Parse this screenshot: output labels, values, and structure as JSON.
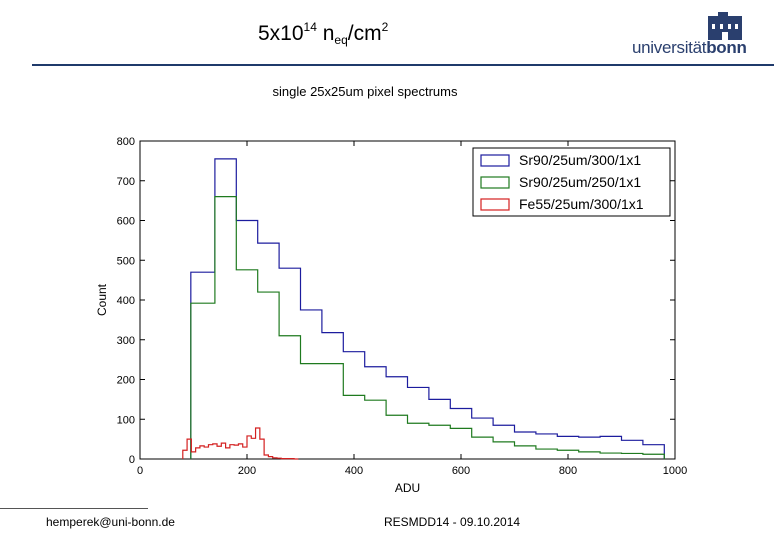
{
  "slide": {
    "title_main": "5x10",
    "title_exp": "14",
    "title_n": " n",
    "title_sub": "eq",
    "title_unit": "/cm",
    "title_unit_exp": "2",
    "subtitle": "single 25x25um pixel spectrums",
    "footer_left": "hemperek@uni-bonn.de",
    "footer_right": "RESMDD14 - 09.10.2014",
    "logo_text_a": "universität",
    "logo_text_b": "bonn"
  },
  "colors": {
    "accent": "#1f3a6b",
    "sr90_300": "#1c1c9e",
    "sr90_250": "#1f7a1f",
    "fe55": "#d42020"
  },
  "chart_data": {
    "type": "histogram",
    "title": "single 25x25um pixel spectrums",
    "xlabel": "ADU",
    "ylabel": "Count",
    "xlim": [
      0,
      1000
    ],
    "ylim": [
      0,
      800
    ],
    "xticks": [
      "0",
      "200",
      "400",
      "600",
      "800",
      "1000"
    ],
    "yticks": [
      "0",
      "100",
      "200",
      "300",
      "400",
      "500",
      "600",
      "700",
      "800"
    ],
    "legend_position": "top-right",
    "series": [
      {
        "name": "Sr90/25um/300/1x1",
        "color": "#1c1c9e",
        "bin_edges": [
          95,
          140,
          180,
          220,
          260,
          300,
          340,
          380,
          420,
          460,
          500,
          540,
          580,
          620,
          660,
          700,
          740,
          780,
          820,
          860,
          900,
          940,
          980
        ],
        "counts": [
          470,
          755,
          600,
          543,
          480,
          375,
          318,
          270,
          232,
          207,
          180,
          150,
          127,
          103,
          85,
          68,
          63,
          57,
          55,
          57,
          47,
          36
        ]
      },
      {
        "name": "Sr90/25um/250/1x1",
        "color": "#1f7a1f",
        "bin_edges": [
          95,
          140,
          180,
          220,
          260,
          300,
          340,
          380,
          420,
          460,
          500,
          540,
          580,
          620,
          660,
          700,
          740,
          780,
          820,
          860,
          900,
          940,
          980
        ],
        "counts": [
          392,
          660,
          476,
          420,
          310,
          240,
          240,
          160,
          148,
          110,
          90,
          85,
          77,
          55,
          43,
          33,
          25,
          22,
          18,
          15,
          14,
          12
        ]
      },
      {
        "name": "Fe55/25um/300/1x1",
        "color": "#d42020",
        "bin_edges": [
          80,
          88,
          96,
          104,
          112,
          120,
          128,
          136,
          144,
          152,
          160,
          168,
          176,
          184,
          192,
          200,
          208,
          216,
          224,
          232,
          240,
          248,
          256,
          264,
          272,
          280,
          288,
          296
        ],
        "counts": [
          22,
          50,
          18,
          28,
          33,
          30,
          36,
          38,
          32,
          40,
          28,
          36,
          35,
          38,
          30,
          58,
          52,
          78,
          50,
          10,
          6,
          3,
          2,
          1,
          1,
          1,
          0
        ]
      }
    ]
  }
}
